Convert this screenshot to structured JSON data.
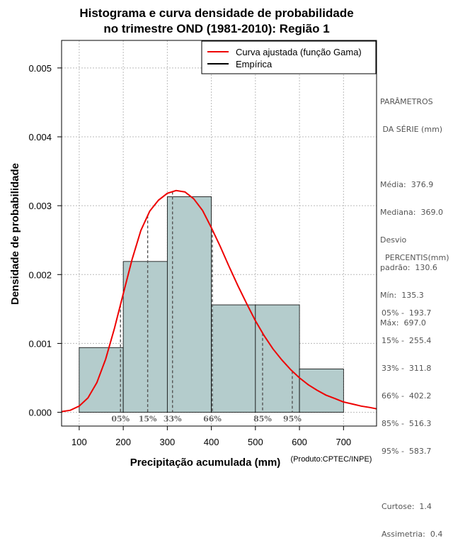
{
  "chart_data": {
    "type": "histogram",
    "title": [
      "Histograma e curva densidade de probabilidade",
      "no trimestre OND (1981-2010): Região 1"
    ],
    "xlabel": "Precipitação acumulada (mm)",
    "ylabel": "Densidade de probabilidade",
    "credit": "(Produto:CPTEC/INPE)",
    "xlim": [
      60,
      775
    ],
    "ylim": [
      -0.0002,
      0.0054
    ],
    "xticks": [
      100,
      200,
      300,
      400,
      500,
      600,
      700
    ],
    "yticks": [
      0.0,
      0.001,
      0.002,
      0.003,
      0.004,
      0.005
    ],
    "ytick_labels": [
      "0.000",
      "0.001",
      "0.002",
      "0.003",
      "0.004",
      "0.005"
    ],
    "grid": true,
    "bins": [
      {
        "x0": 100,
        "x1": 200,
        "density": 0.00094
      },
      {
        "x0": 200,
        "x1": 300,
        "density": 0.00219
      },
      {
        "x0": 300,
        "x1": 400,
        "density": 0.00313
      },
      {
        "x0": 400,
        "x1": 500,
        "density": 0.00156
      },
      {
        "x0": 500,
        "x1": 600,
        "density": 0.00156
      },
      {
        "x0": 600,
        "x1": 700,
        "density": 0.00063
      }
    ],
    "bar_color": "#b4cccc",
    "curve": {
      "name": "Curva ajustada (função Gama)",
      "color": "#ee0000",
      "points": [
        [
          60,
          1e-05
        ],
        [
          80,
          3e-05
        ],
        [
          100,
          9e-05
        ],
        [
          120,
          0.00021
        ],
        [
          140,
          0.00043
        ],
        [
          160,
          0.00077
        ],
        [
          180,
          0.00122
        ],
        [
          200,
          0.00172
        ],
        [
          220,
          0.00222
        ],
        [
          240,
          0.00264
        ],
        [
          260,
          0.00292
        ],
        [
          280,
          0.00308
        ],
        [
          300,
          0.00318
        ],
        [
          320,
          0.00322
        ],
        [
          340,
          0.0032
        ],
        [
          360,
          0.0031
        ],
        [
          380,
          0.00293
        ],
        [
          400,
          0.00268
        ],
        [
          420,
          0.00241
        ],
        [
          440,
          0.00212
        ],
        [
          460,
          0.00184
        ],
        [
          480,
          0.00158
        ],
        [
          500,
          0.00133
        ],
        [
          520,
          0.00111
        ],
        [
          540,
          0.00092
        ],
        [
          560,
          0.00076
        ],
        [
          580,
          0.00062
        ],
        [
          600,
          0.0005
        ],
        [
          620,
          0.0004
        ],
        [
          640,
          0.00032
        ],
        [
          660,
          0.00025
        ],
        [
          680,
          0.0002
        ],
        [
          700,
          0.00015
        ],
        [
          720,
          0.00012
        ],
        [
          740,
          9e-05
        ],
        [
          760,
          7e-05
        ],
        [
          775,
          5e-05
        ]
      ]
    },
    "empirical": {
      "name": "Empírica",
      "color": "#000000"
    },
    "percentile_lines": [
      {
        "label": "05%",
        "value": 193.7
      },
      {
        "label": "15%",
        "value": 255.4
      },
      {
        "label": "33%",
        "value": 311.8
      },
      {
        "label": "66%",
        "value": 402.2
      },
      {
        "label": "85%",
        "value": 516.3
      },
      {
        "label": "95%",
        "value": 583.7
      }
    ],
    "legend_position": "top-right"
  },
  "panel": {
    "params_title_1": "PARÂMETROS",
    "params_title_2": " DA SÉRIE (mm)",
    "media": "Média:  376.9",
    "mediana": "Mediana:  369.0",
    "desvio_1": "Desvio",
    "desvio_2": "padrão:  130.6",
    "min": "Mín:  135.3",
    "max": "Máx:  697.0",
    "percentis_title": "PERCENTIS(mm)",
    "p05": "05% -  193.7",
    "p15": "15% -  255.4",
    "p33": "33% -  311.8",
    "p66": "66% -  402.2",
    "p85": "85% -  516.3",
    "p95": "95% -  583.7",
    "curtose": "Curtose:  1.4",
    "assimetria": "Assimetria:  0.4"
  }
}
